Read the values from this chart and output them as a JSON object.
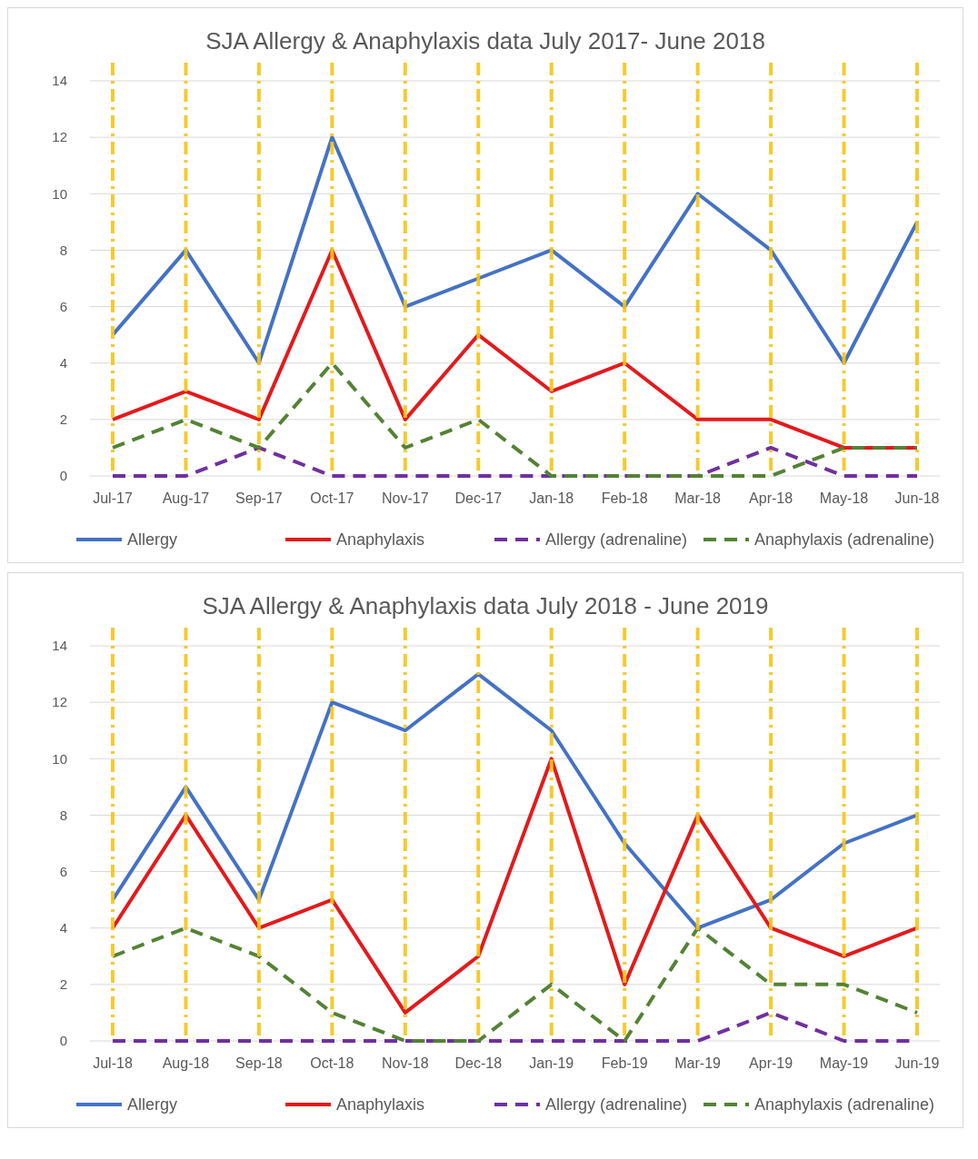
{
  "chart_data": [
    {
      "type": "line",
      "title": "SJA Allergy & Anaphylaxis data July 2017- June 2018",
      "categories": [
        "Jul-17",
        "Aug-17",
        "Sep-17",
        "Oct-17",
        "Nov-17",
        "Dec-17",
        "Jan-18",
        "Feb-18",
        "Mar-18",
        "Apr-18",
        "May-18",
        "Jun-18"
      ],
      "ylim": [
        0,
        14
      ],
      "yticks": [
        0,
        2,
        4,
        6,
        8,
        10,
        12,
        14
      ],
      "grid": true,
      "legend": "bottom",
      "series": [
        {
          "name": "Allergy",
          "color": "#4472c4",
          "line_style": "solid",
          "values": [
            5,
            8,
            4,
            12,
            6,
            7,
            8,
            6,
            10,
            8,
            4,
            9
          ]
        },
        {
          "name": "Anaphylaxis",
          "color": "#e31a1c",
          "line_style": "solid",
          "values": [
            2,
            3,
            2,
            8,
            2,
            5,
            3,
            4,
            2,
            2,
            1,
            1
          ]
        },
        {
          "name": "Allergy (adrenaline)",
          "color": "#7030a0",
          "line_style": "dashed",
          "values": [
            0,
            0,
            1,
            0,
            0,
            0,
            0,
            0,
            0,
            1,
            0,
            0
          ]
        },
        {
          "name": "Anaphylaxis (adrenaline)",
          "color": "#548235",
          "line_style": "dashed",
          "values": [
            1,
            2,
            1,
            4,
            1,
            2,
            0,
            0,
            0,
            0,
            1,
            1
          ]
        }
      ]
    },
    {
      "type": "line",
      "title": "SJA Allergy & Anaphylaxis data July 2018 - June 2019",
      "categories": [
        "Jul-18",
        "Aug-18",
        "Sep-18",
        "Oct-18",
        "Nov-18",
        "Dec-18",
        "Jan-19",
        "Feb-19",
        "Mar-19",
        "Apr-19",
        "May-19",
        "Jun-19"
      ],
      "ylim": [
        0,
        14
      ],
      "yticks": [
        0,
        2,
        4,
        6,
        8,
        10,
        12,
        14
      ],
      "grid": true,
      "legend": "bottom",
      "series": [
        {
          "name": "Allergy",
          "color": "#4472c4",
          "line_style": "solid",
          "values": [
            5,
            9,
            5,
            12,
            11,
            13,
            11,
            7,
            4,
            5,
            7,
            8
          ]
        },
        {
          "name": "Anaphylaxis",
          "color": "#e31a1c",
          "line_style": "solid",
          "values": [
            4,
            8,
            4,
            5,
            1,
            3,
            10,
            2,
            8,
            4,
            3,
            4
          ]
        },
        {
          "name": "Allergy (adrenaline)",
          "color": "#7030a0",
          "line_style": "dashed",
          "values": [
            0,
            0,
            0,
            0,
            0,
            0,
            0,
            0,
            0,
            1,
            0,
            0
          ]
        },
        {
          "name": "Anaphylaxis (adrenaline)",
          "color": "#548235",
          "line_style": "dashed",
          "values": [
            3,
            4,
            3,
            1,
            0,
            0,
            2,
            0,
            4,
            2,
            2,
            1
          ]
        }
      ]
    }
  ]
}
